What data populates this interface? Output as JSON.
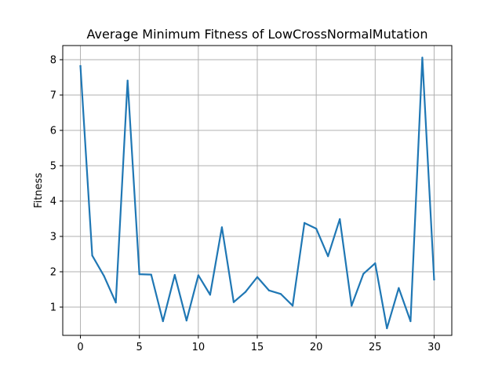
{
  "chart_data": {
    "type": "line",
    "title": "Average Minimum Fitness of LowCrossNormalMutation",
    "xlabel": "",
    "ylabel": "Fitness",
    "xlim": [
      -1.5,
      31.5
    ],
    "ylim": [
      0.2,
      8.4
    ],
    "xticks": [
      0,
      5,
      10,
      15,
      20,
      25,
      30
    ],
    "yticks": [
      1,
      2,
      3,
      4,
      5,
      6,
      7,
      8
    ],
    "grid": true,
    "colors": {
      "line": "#1f77b4",
      "grid": "#b0b0b0",
      "axis": "#000000"
    },
    "series": [
      {
        "x": [
          0,
          1,
          2,
          3,
          4,
          5,
          6,
          7,
          8,
          9,
          10,
          11,
          12,
          13,
          14,
          15,
          16,
          17,
          18,
          19,
          20,
          21,
          22,
          23,
          24,
          25,
          26,
          27,
          28,
          29,
          30
        ],
        "y": [
          7.82,
          2.46,
          1.88,
          1.13,
          7.41,
          1.93,
          1.92,
          0.6,
          1.91,
          0.62,
          1.9,
          1.35,
          3.26,
          1.14,
          1.43,
          1.85,
          1.47,
          1.37,
          1.04,
          3.38,
          3.22,
          2.44,
          3.49,
          1.04,
          1.94,
          2.24,
          0.4,
          1.54,
          0.6,
          8.06,
          1.78
        ]
      }
    ]
  }
}
